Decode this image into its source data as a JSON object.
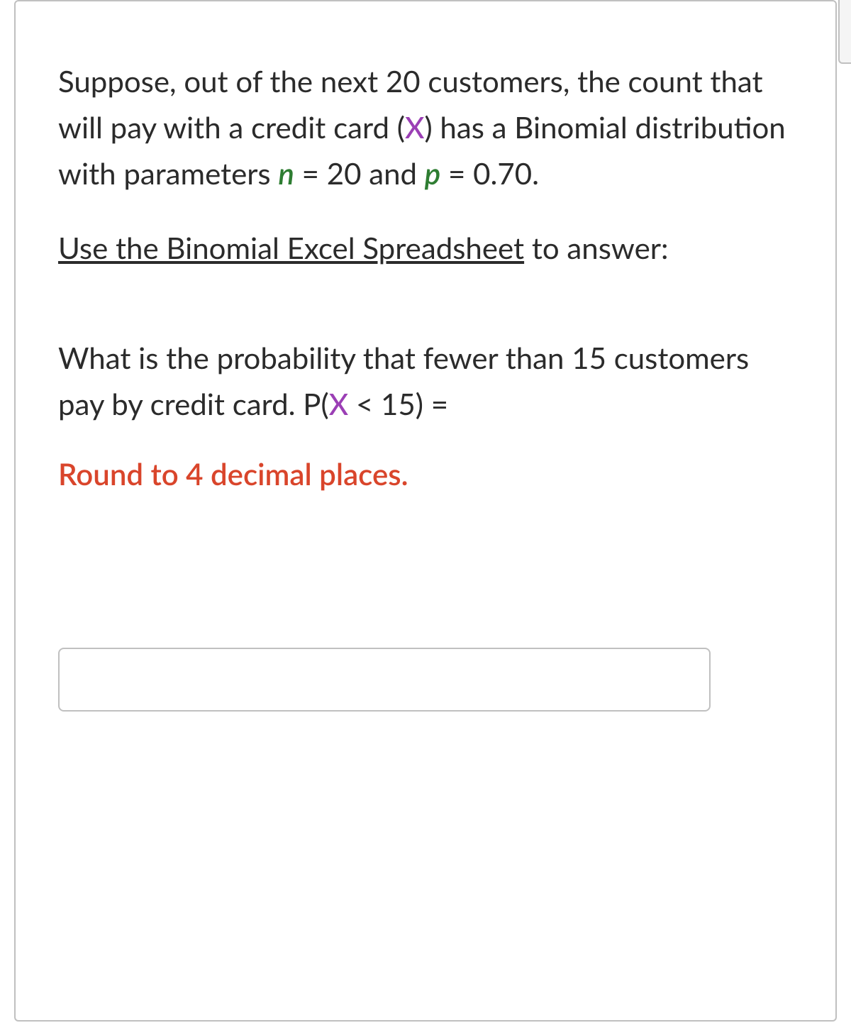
{
  "question": {
    "intro_part1": "Suppose, out of the next 20 customers, the count that will pay with a credit card (",
    "var_x": "X",
    "intro_part2": ") has a Binomial distribution with parameters ",
    "var_n": "n",
    "intro_part3": " = 20 and ",
    "var_p": "p",
    "intro_part4": " = 0.70.",
    "link_text": "Use the Binomial Excel Spreadsheet",
    "link_suffix": " to answer:",
    "prompt_part1": "What is the probability that fewer than 15 customers pay by credit card.   P(",
    "prompt_var": "X",
    "prompt_part2": " < 15) =",
    "round_instruction": "Round to 4 decimal places."
  },
  "colors": {
    "text": "#2b2b2b",
    "var_x": "#9b3fb5",
    "var_green": "#2e7d32",
    "instruction": "#d9452b",
    "border": "#c0c0c0",
    "background": "#ffffff"
  },
  "input": {
    "value": "",
    "placeholder": ""
  }
}
